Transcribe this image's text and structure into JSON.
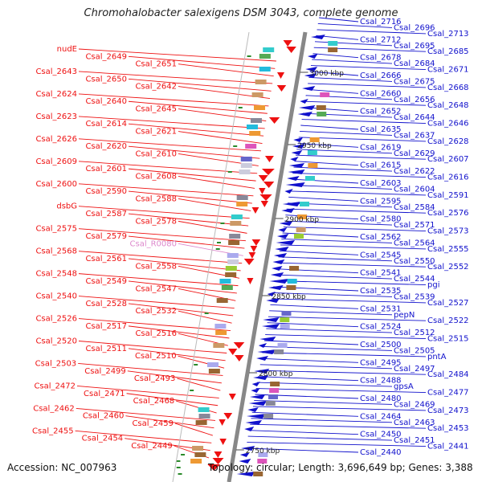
{
  "title": "Chromohalobacter salexigens DSM 3043, complete genome",
  "footer": {
    "accession": "Accession: NC_007963",
    "info": "Topology: circular; Length: 3,696,649 bp; Genes: 3,388"
  },
  "colors": {
    "left_strand": "#ee1111",
    "right_strand": "#1111cc",
    "special": "#dd88cc",
    "backbone": "#888888",
    "marker": "#2a8a2a"
  },
  "kbp_labels": [
    "3000 kbp",
    "2950 kbp",
    "2900 kbp",
    "2850 kbp",
    "2800 kbp",
    "2750 kbp"
  ],
  "left_labels": [
    {
      "text": "nudE"
    },
    {
      "text": "Csal_2649"
    },
    {
      "text": "Csal_2651"
    },
    {
      "text": "Csal_2643"
    },
    {
      "text": "Csal_2650"
    },
    {
      "text": "Csal_2642"
    },
    {
      "text": "Csal_2624"
    },
    {
      "text": "Csal_2640"
    },
    {
      "text": "Csal_2645"
    },
    {
      "text": "Csal_2623"
    },
    {
      "text": "Csal_2614"
    },
    {
      "text": "Csal_2621"
    },
    {
      "text": "Csal_2626"
    },
    {
      "text": "Csal_2620"
    },
    {
      "text": "Csal_2610"
    },
    {
      "text": "Csal_2609"
    },
    {
      "text": "Csal_2601"
    },
    {
      "text": "Csal_2608"
    },
    {
      "text": "Csal_2600"
    },
    {
      "text": "Csal_2590"
    },
    {
      "text": "Csal_2588"
    },
    {
      "text": "dsbG"
    },
    {
      "text": "Csal_2587"
    },
    {
      "text": "Csal_2578"
    },
    {
      "text": "Csal_2575"
    },
    {
      "text": "Csal_2579"
    },
    {
      "text": "Csal_R0080",
      "special": true
    },
    {
      "text": "Csal_2568"
    },
    {
      "text": "Csal_2561"
    },
    {
      "text": "Csal_2558"
    },
    {
      "text": "Csal_2548"
    },
    {
      "text": "Csal_2549"
    },
    {
      "text": "Csal_2547"
    },
    {
      "text": "Csal_2540"
    },
    {
      "text": "Csal_2528"
    },
    {
      "text": "Csal_2532"
    },
    {
      "text": "Csal_2526"
    },
    {
      "text": "Csal_2517"
    },
    {
      "text": "Csal_2516"
    },
    {
      "text": "Csal_2520"
    },
    {
      "text": "Csal_2511"
    },
    {
      "text": "Csal_2510"
    },
    {
      "text": "Csal_2503"
    },
    {
      "text": "Csal_2499"
    },
    {
      "text": "Csal_2493"
    },
    {
      "text": "Csal_2472"
    },
    {
      "text": "Csal_2471"
    },
    {
      "text": "Csal_2468"
    },
    {
      "text": "Csal_2462"
    },
    {
      "text": "Csal_2460"
    },
    {
      "text": "Csal_2459"
    },
    {
      "text": "Csal_2455"
    },
    {
      "text": "Csal_2454"
    },
    {
      "text": "Csal_2449"
    }
  ],
  "right_labels": [
    {
      "text": "Csal_2716"
    },
    {
      "text": "Csal_2696"
    },
    {
      "text": "Csal_2713"
    },
    {
      "text": "Csal_2712"
    },
    {
      "text": "Csal_2695"
    },
    {
      "text": "Csal_2685"
    },
    {
      "text": "Csal_2678"
    },
    {
      "text": "Csal_2684"
    },
    {
      "text": "Csal_2671"
    },
    {
      "text": "Csal_2666"
    },
    {
      "text": "Csal_2675"
    },
    {
      "text": "Csal_2668"
    },
    {
      "text": "Csal_2660"
    },
    {
      "text": "Csal_2656"
    },
    {
      "text": "Csal_2648"
    },
    {
      "text": "Csal_2652"
    },
    {
      "text": "Csal_2644"
    },
    {
      "text": "Csal_2646"
    },
    {
      "text": "Csal_2635"
    },
    {
      "text": "Csal_2637"
    },
    {
      "text": "Csal_2628"
    },
    {
      "text": "Csal_2619"
    },
    {
      "text": "Csal_2629"
    },
    {
      "text": "Csal_2607"
    },
    {
      "text": "Csal_2615"
    },
    {
      "text": "Csal_2622"
    },
    {
      "text": "Csal_2616"
    },
    {
      "text": "Csal_2603"
    },
    {
      "text": "Csal_2604"
    },
    {
      "text": "Csal_2591"
    },
    {
      "text": "Csal_2595"
    },
    {
      "text": "Csal_2584"
    },
    {
      "text": "Csal_2576"
    },
    {
      "text": "Csal_2580"
    },
    {
      "text": "Csal_2571"
    },
    {
      "text": "Csal_2573"
    },
    {
      "text": "Csal_2562"
    },
    {
      "text": "Csal_2564"
    },
    {
      "text": "Csal_2555"
    },
    {
      "text": "Csal_2545"
    },
    {
      "text": "Csal_2550"
    },
    {
      "text": "Csal_2552"
    },
    {
      "text": "Csal_2541"
    },
    {
      "text": "Csal_2544"
    },
    {
      "text": "pgi"
    },
    {
      "text": "Csal_2535"
    },
    {
      "text": "Csal_2539"
    },
    {
      "text": "Csal_2527"
    },
    {
      "text": "Csal_2531"
    },
    {
      "text": "pepN"
    },
    {
      "text": "Csal_2522"
    },
    {
      "text": "Csal_2524"
    },
    {
      "text": "Csal_2512"
    },
    {
      "text": "Csal_2515"
    },
    {
      "text": "Csal_2500"
    },
    {
      "text": "Csal_2505"
    },
    {
      "text": "pntA"
    },
    {
      "text": "Csal_2495"
    },
    {
      "text": "Csal_2497"
    },
    {
      "text": "Csal_2484"
    },
    {
      "text": "Csal_2488"
    },
    {
      "text": "gpsA"
    },
    {
      "text": "Csal_2477"
    },
    {
      "text": "Csal_2480"
    },
    {
      "text": "Csal_2469"
    },
    {
      "text": "Csal_2473"
    },
    {
      "text": "Csal_2464"
    },
    {
      "text": "Csal_2463"
    },
    {
      "text": "Csal_2453"
    },
    {
      "text": "Csal_2450"
    },
    {
      "text": "Csal_2451"
    },
    {
      "text": "Csal_2441"
    },
    {
      "text": "Csal_2440"
    }
  ]
}
